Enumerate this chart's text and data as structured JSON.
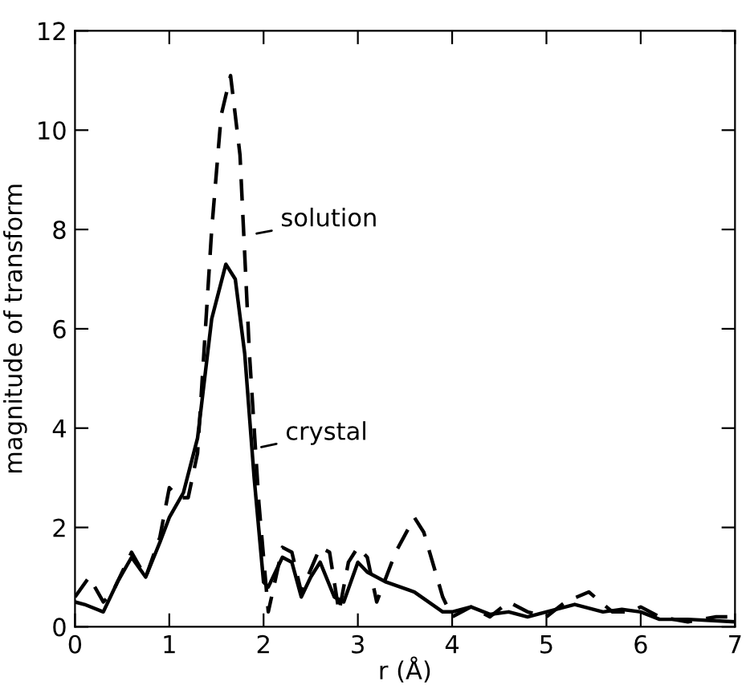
{
  "chart_data": {
    "type": "line",
    "xlabel": "r (Å)",
    "ylabel": "magnitude of transform",
    "xlim": [
      0,
      7
    ],
    "ylim": [
      0,
      12
    ],
    "xticks": [
      0,
      1,
      2,
      3,
      4,
      5,
      6,
      7
    ],
    "yticks": [
      0,
      2,
      4,
      6,
      8,
      10,
      12
    ],
    "grid": false,
    "legend": false,
    "series": [
      {
        "color": "#000000",
        "line_style": "dashed",
        "x": [
          0,
          0.15,
          0.3,
          0.4,
          0.6,
          0.75,
          0.9,
          1.0,
          1.1,
          1.2,
          1.3,
          1.45,
          1.55,
          1.65,
          1.75,
          1.85,
          1.95,
          2.05,
          2.2,
          2.3,
          2.4,
          2.6,
          2.7,
          2.8,
          2.9,
          3.0,
          3.1,
          3.2,
          3.4,
          3.6,
          3.7,
          3.9,
          4.0,
          4.2,
          4.4,
          4.6,
          4.8,
          5.0,
          5.2,
          5.45,
          5.7,
          5.9,
          6.0,
          6.2,
          6.5,
          6.8,
          7.0
        ],
        "values": [
          0.6,
          1.0,
          0.5,
          0.7,
          1.5,
          1.0,
          1.8,
          2.8,
          2.6,
          2.6,
          3.5,
          8.0,
          10.3,
          11.1,
          9.5,
          5.5,
          2.5,
          0.3,
          1.6,
          1.5,
          0.7,
          1.6,
          1.5,
          0.3,
          1.3,
          1.6,
          1.4,
          0.5,
          1.5,
          2.2,
          1.9,
          0.6,
          0.2,
          0.4,
          0.2,
          0.5,
          0.3,
          0.2,
          0.5,
          0.7,
          0.3,
          0.3,
          0.4,
          0.2,
          0.1,
          0.2,
          0.2
        ]
      },
      {
        "color": "#000000",
        "line_style": "solid",
        "x": [
          0,
          0.1,
          0.3,
          0.45,
          0.6,
          0.75,
          0.9,
          1.0,
          1.15,
          1.3,
          1.45,
          1.6,
          1.7,
          1.8,
          1.9,
          2.0,
          2.05,
          2.2,
          2.3,
          2.4,
          2.5,
          2.6,
          2.75,
          2.85,
          3.0,
          3.1,
          3.3,
          3.6,
          3.9,
          4.0,
          4.2,
          4.4,
          4.6,
          4.8,
          5.0,
          5.3,
          5.6,
          5.8,
          6.0,
          6.2,
          6.5,
          7.0
        ],
        "values": [
          0.5,
          0.45,
          0.3,
          0.9,
          1.4,
          1.0,
          1.7,
          2.2,
          2.7,
          3.8,
          6.2,
          7.3,
          7.0,
          5.5,
          3.0,
          0.9,
          0.8,
          1.4,
          1.3,
          0.6,
          1.0,
          1.3,
          0.6,
          0.5,
          1.3,
          1.1,
          0.9,
          0.7,
          0.3,
          0.3,
          0.4,
          0.25,
          0.3,
          0.2,
          0.3,
          0.45,
          0.3,
          0.35,
          0.3,
          0.15,
          0.15,
          0.1
        ]
      }
    ],
    "annotations": [
      {
        "text": "solution",
        "x": 1.88,
        "y": 7.9
      },
      {
        "text": "crystal",
        "x": 1.93,
        "y": 3.6
      }
    ]
  }
}
